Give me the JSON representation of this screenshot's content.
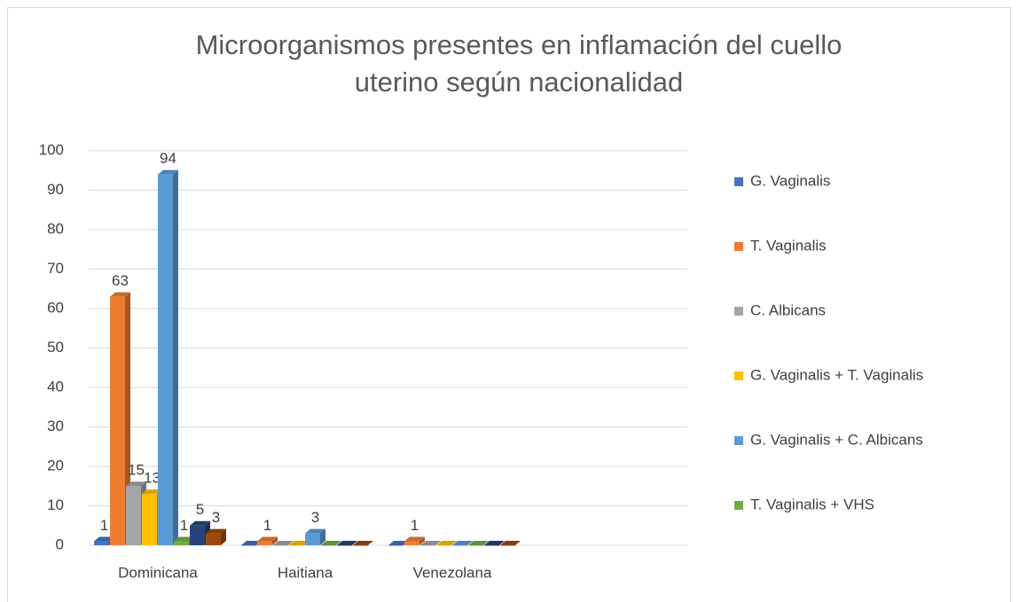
{
  "chart_data": {
    "type": "bar3d",
    "title": "Microorganismos presentes en inflamación del cuello uterino según nacionalidad",
    "categories": [
      "Dominicana",
      "Haitiana",
      "Venezolana"
    ],
    "series": [
      {
        "name": "G. Vaginalis",
        "color": "#4472c4",
        "values": [
          1,
          0,
          0
        ]
      },
      {
        "name": "T. Vaginalis",
        "color": "#ed7d31",
        "values": [
          63,
          1,
          1
        ]
      },
      {
        "name": "C. Albicans",
        "color": "#a5a5a5",
        "values": [
          15,
          0,
          0
        ]
      },
      {
        "name": "G. Vaginalis + T. Vaginalis",
        "color": "#ffc000",
        "values": [
          13,
          0,
          0
        ]
      },
      {
        "name": "G. Vaginalis + C. Albicans",
        "color": "#5b9bd5",
        "values": [
          94,
          3,
          0
        ]
      },
      {
        "name": "T. Vaginalis + VHS",
        "color": "#70ad47",
        "values": [
          1,
          0,
          0
        ]
      },
      {
        "name": null,
        "color": "#264478",
        "values": [
          5,
          0,
          0
        ]
      },
      {
        "name": null,
        "color": "#9e480e",
        "values": [
          3,
          0,
          0
        ]
      }
    ],
    "ylim": [
      0,
      100
    ],
    "yticks": [
      0,
      10,
      20,
      30,
      40,
      50,
      60,
      70,
      80,
      90,
      100
    ],
    "grid": true,
    "legend": "right"
  }
}
